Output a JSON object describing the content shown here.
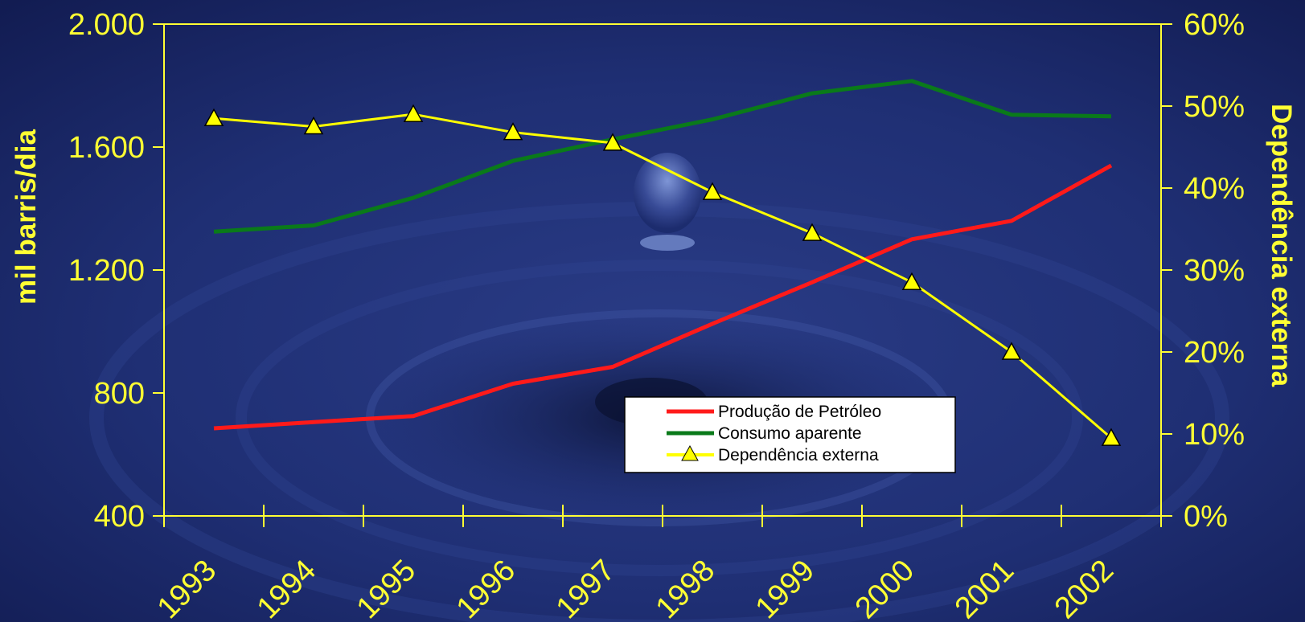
{
  "chart_data": {
    "type": "line",
    "x": [
      "1993",
      "1994",
      "1995",
      "1996",
      "1997",
      "1998",
      "1999",
      "2000",
      "2001",
      "2002"
    ],
    "ylabel": "mil barris/dia",
    "ylabel_right": "Dependência externa",
    "ylim": [
      400,
      2000
    ],
    "yticks": [
      "400",
      "800",
      "1.200",
      "1.600",
      "2.000"
    ],
    "ylim_right": [
      0,
      60
    ],
    "yticks_right": [
      "0%",
      "10%",
      "20%",
      "30%",
      "40%",
      "50%",
      "60%"
    ],
    "grid": false,
    "legend_position": "bottom-center",
    "series": [
      {
        "name": "Produção de Petróleo",
        "axis": "left",
        "color": "#ff1a1a",
        "marker": "none",
        "values": [
          685,
          705,
          725,
          830,
          885,
          1025,
          1160,
          1300,
          1360,
          1540
        ]
      },
      {
        "name": "Consumo aparente",
        "axis": "left",
        "color": "#0a7a1a",
        "marker": "none",
        "values": [
          1325,
          1345,
          1435,
          1555,
          1625,
          1690,
          1775,
          1815,
          1705,
          1700
        ]
      },
      {
        "name": "Dependência externa",
        "axis": "right",
        "color": "#ffff00",
        "marker": "triangle",
        "values": [
          48.5,
          47.5,
          49,
          46.8,
          45.5,
          39.5,
          34.5,
          28.5,
          20,
          9.5
        ]
      }
    ]
  },
  "colors": {
    "axis": "#ffff33",
    "background": "#1b2a6b",
    "legend_background": "#ffffff"
  }
}
